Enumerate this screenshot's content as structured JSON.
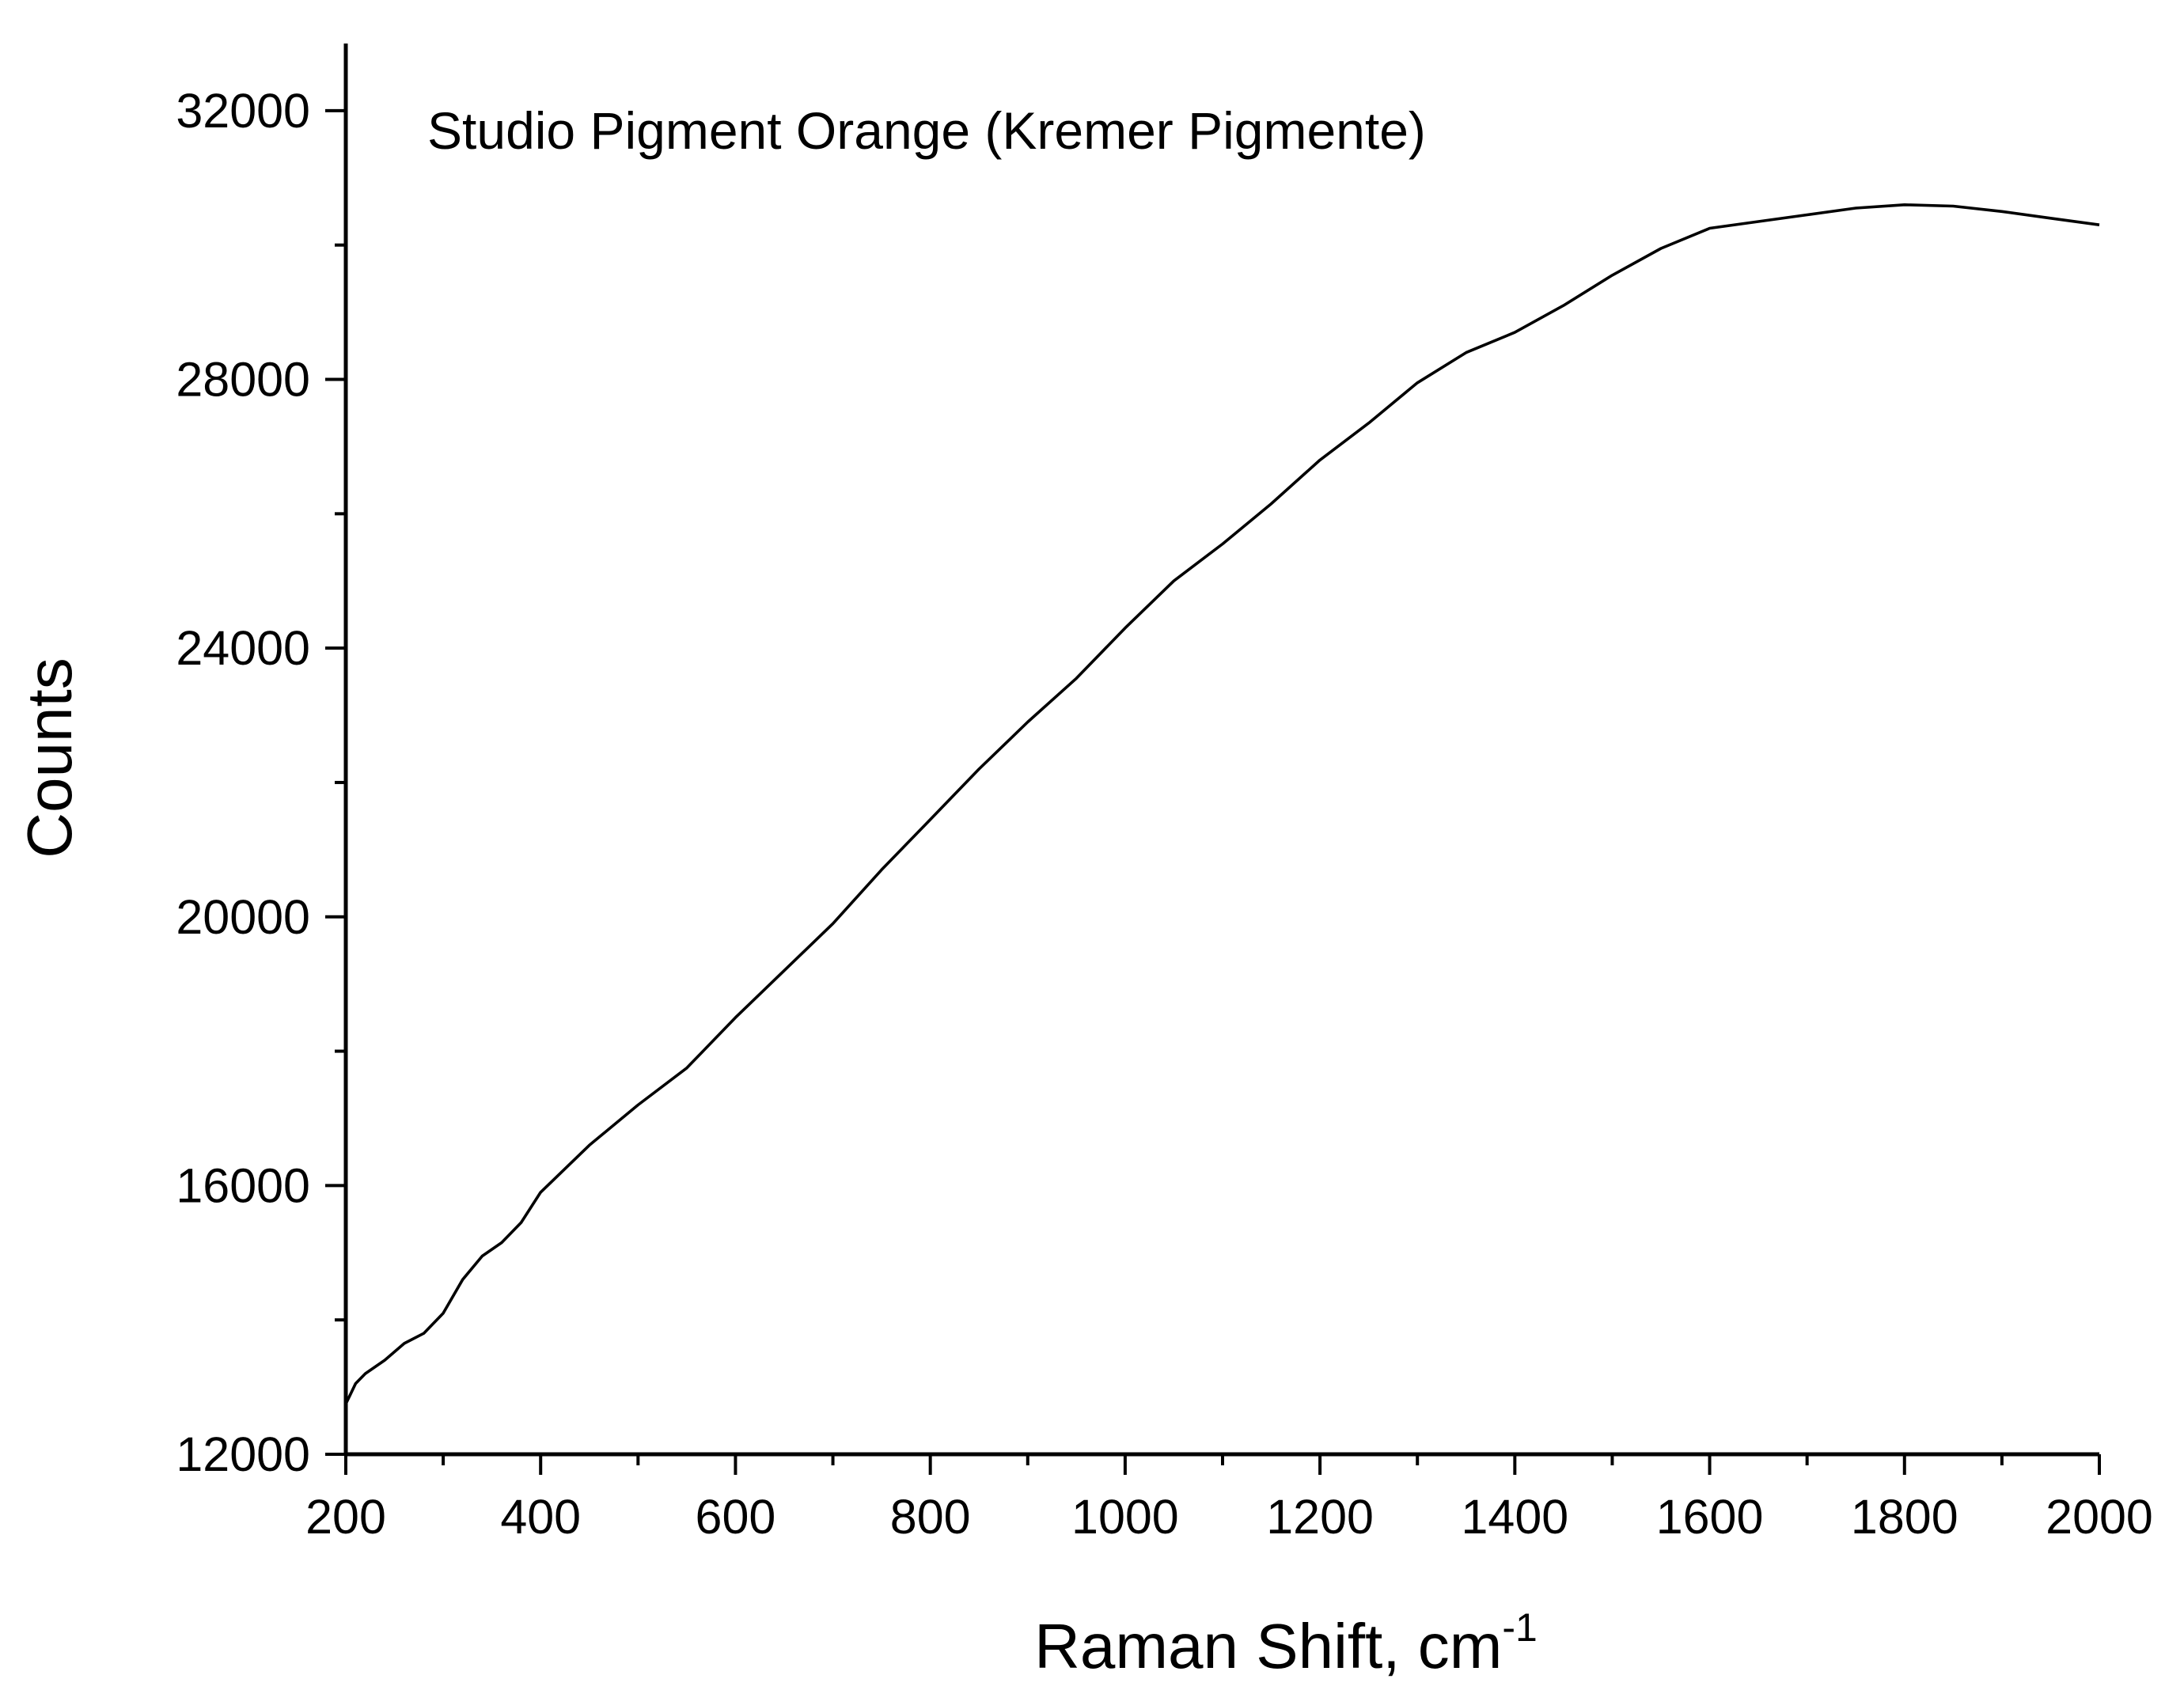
{
  "chart_data": {
    "type": "line",
    "title": "Studio Pigment Orange (Kremer Pigmente)",
    "xlabel": "Raman Shift, cm",
    "xlabel_superscript": "-1",
    "ylabel": "Counts",
    "xlim": [
      200,
      2000
    ],
    "ylim": [
      12000,
      33000
    ],
    "x_ticks": [
      200,
      400,
      600,
      800,
      1000,
      1200,
      1400,
      1600,
      1800,
      2000
    ],
    "x_minor_ticks": [
      300,
      500,
      700,
      900,
      1100,
      1300,
      1500,
      1700,
      1900
    ],
    "y_ticks": [
      12000,
      16000,
      20000,
      24000,
      28000,
      32000
    ],
    "y_minor_ticks": [
      14000,
      18000,
      22000,
      26000,
      30000
    ],
    "grid": false,
    "line_color": "#000000",
    "series": [
      {
        "name": "Studio Pigment Orange (Kremer Pigmente)",
        "x": [
          200,
          205,
          210,
          220,
          240,
          260,
          280,
          300,
          320,
          340,
          360,
          380,
          400,
          450,
          500,
          550,
          600,
          650,
          700,
          750,
          800,
          850,
          900,
          950,
          1000,
          1050,
          1100,
          1150,
          1200,
          1250,
          1300,
          1350,
          1400,
          1450,
          1500,
          1550,
          1600,
          1650,
          1700,
          1750,
          1800,
          1850,
          1900,
          1950,
          2000
        ],
        "y": [
          12750,
          12900,
          13050,
          13200,
          13400,
          13650,
          13800,
          14100,
          14600,
          14950,
          15150,
          15450,
          15900,
          16600,
          17200,
          17750,
          18500,
          19200,
          19900,
          20700,
          21450,
          22200,
          22900,
          23550,
          24300,
          25000,
          25550,
          26150,
          26800,
          27350,
          27950,
          28400,
          28700,
          29100,
          29550,
          29950,
          30250,
          30350,
          30450,
          30550,
          30600,
          30580,
          30500,
          30400,
          30300
        ]
      }
    ]
  }
}
